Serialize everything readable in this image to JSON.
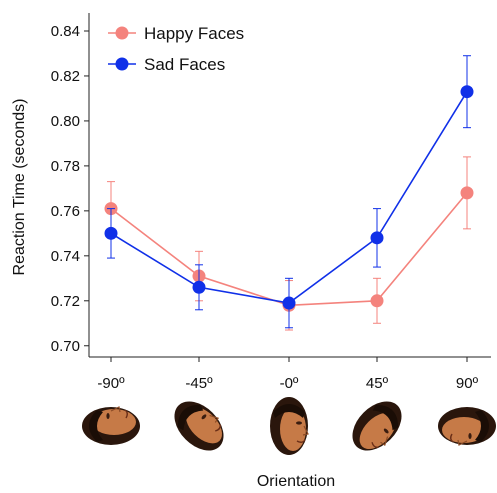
{
  "chart_data": {
    "type": "line",
    "xlabel": "Orientation",
    "ylabel": "Reaction Time (seconds)",
    "categories": [
      "-90º",
      "-45º",
      "-0º",
      "45º",
      "90º"
    ],
    "ylim": [
      0.695,
      0.848
    ],
    "yticks": [
      "0.70",
      "0.72",
      "0.74",
      "0.76",
      "0.78",
      "0.80",
      "0.82",
      "0.84"
    ],
    "legend_position": "top-left",
    "grid": false,
    "series": [
      {
        "name": "Happy Faces",
        "color": "#f4837d",
        "values": [
          0.761,
          0.731,
          0.718,
          0.72,
          0.768
        ],
        "error": [
          0.012,
          0.011,
          0.011,
          0.01,
          0.016
        ]
      },
      {
        "name": "Sad Faces",
        "color": "#1030e8",
        "values": [
          0.75,
          0.726,
          0.719,
          0.748,
          0.813
        ],
        "error": [
          0.011,
          0.01,
          0.011,
          0.013,
          0.016
        ]
      }
    ],
    "face_images": [
      "face-rotated-minus-90",
      "face-rotated-minus-45",
      "face-upright",
      "face-rotated-45",
      "face-rotated-90"
    ]
  }
}
